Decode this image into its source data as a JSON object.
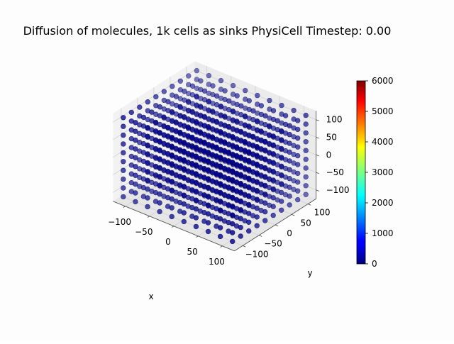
{
  "chart_data": {
    "type": "scatter",
    "title": "Diffusion of molecules, 1k cells as sinks PhysiCell Timestep: 0.00",
    "xlabel": "x",
    "ylabel": "y",
    "zlabel": "",
    "x_ticks": [
      "−100",
      "−50",
      "0",
      "50",
      "100"
    ],
    "y_ticks": [
      "−100",
      "−50",
      "0",
      "50",
      "100"
    ],
    "z_ticks": [
      "−100",
      "−50",
      "0",
      "50",
      "100"
    ],
    "xlim": [
      -125,
      125
    ],
    "ylim": [
      -125,
      125
    ],
    "zlim": [
      -125,
      125
    ],
    "grid": true,
    "grid_points": [
      -112.5,
      -87.5,
      -62.5,
      -37.5,
      -12.5,
      12.5,
      37.5,
      62.5,
      87.5,
      112.5
    ],
    "n_cells": 1000,
    "value_all_cells": 0,
    "marker_color": "#00008b",
    "colorbar": {
      "colormap": "jet",
      "range": [
        0,
        6000
      ],
      "ticks": [
        "0",
        "1000",
        "2000",
        "3000",
        "4000",
        "5000",
        "6000"
      ]
    }
  }
}
